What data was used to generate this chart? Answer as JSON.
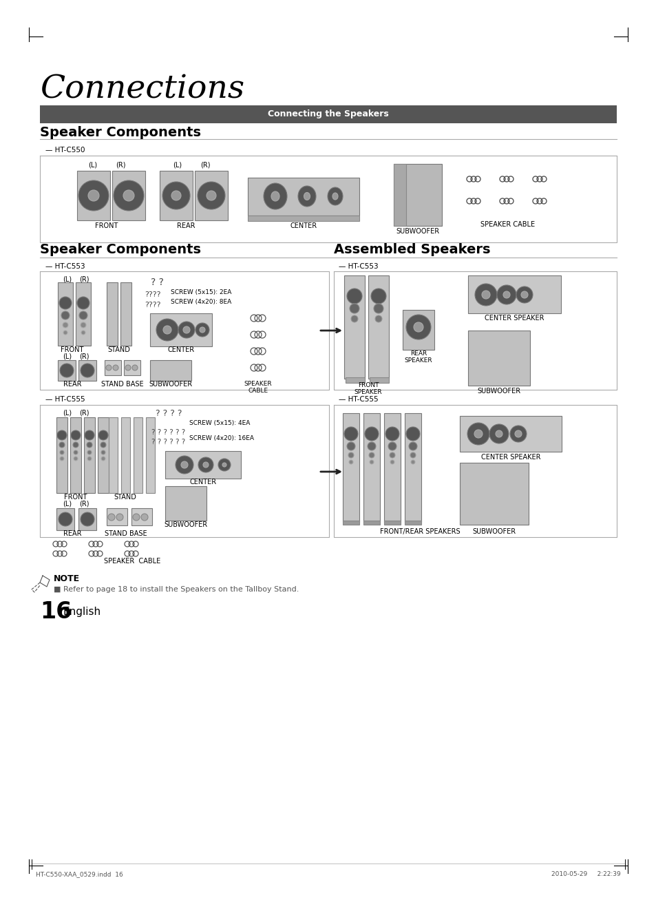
{
  "title": "Connections",
  "header_bar_text": "Connecting the Speakers",
  "header_bar_color": "#555555",
  "header_bar_text_color": "#ffffff",
  "bg_color": "#ffffff",
  "section1_title": "Speaker Components",
  "section2_left_title": "Speaker Components",
  "section2_right_title": "Assembled Speakers",
  "note_bullet": "Refer to page 18 to install the Speakers on the Tallboy Stand.",
  "page_number": "16",
  "page_language": "English",
  "footer_left": "HT-C550-XAA_0529.indd  16",
  "footer_right": "2010-05-29     2:22:39"
}
